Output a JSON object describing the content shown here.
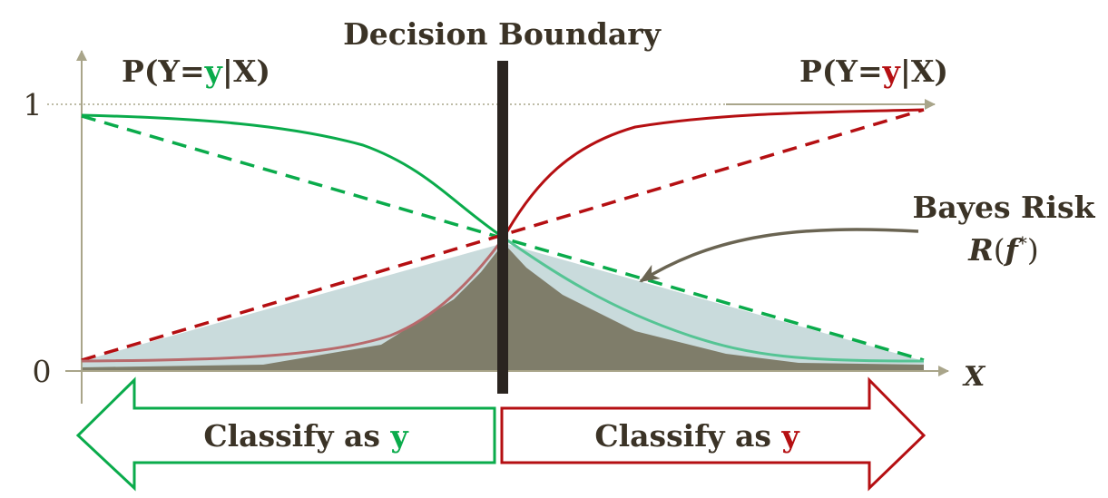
{
  "title": "Decision Boundary",
  "left_label": {
    "prefix": "P(Y=",
    "var": "y",
    "suffix": "|X)"
  },
  "right_label": {
    "prefix": "P(Y=",
    "var": "y",
    "suffix": "|X)"
  },
  "y_ticks": [
    "1",
    "0"
  ],
  "x_axis_label": "X",
  "bayes_risk": {
    "line1": "Bayes Risk",
    "formula_R": "R",
    "formula_open": "(",
    "formula_f": "f",
    "formula_star": "*",
    "formula_close": ")"
  },
  "left_arrow": {
    "prefix": "Classify as ",
    "var": "y"
  },
  "right_arrow": {
    "prefix": "Classify as ",
    "var": "y"
  },
  "colors": {
    "green": "#0aab4b",
    "red": "#b50f12",
    "dark_text": "#3b3326",
    "axis": "#a9a58a",
    "fill_light": "#c9dbdc",
    "fill_dark": "#7f7d6a",
    "boundary": "#2a2420"
  }
}
